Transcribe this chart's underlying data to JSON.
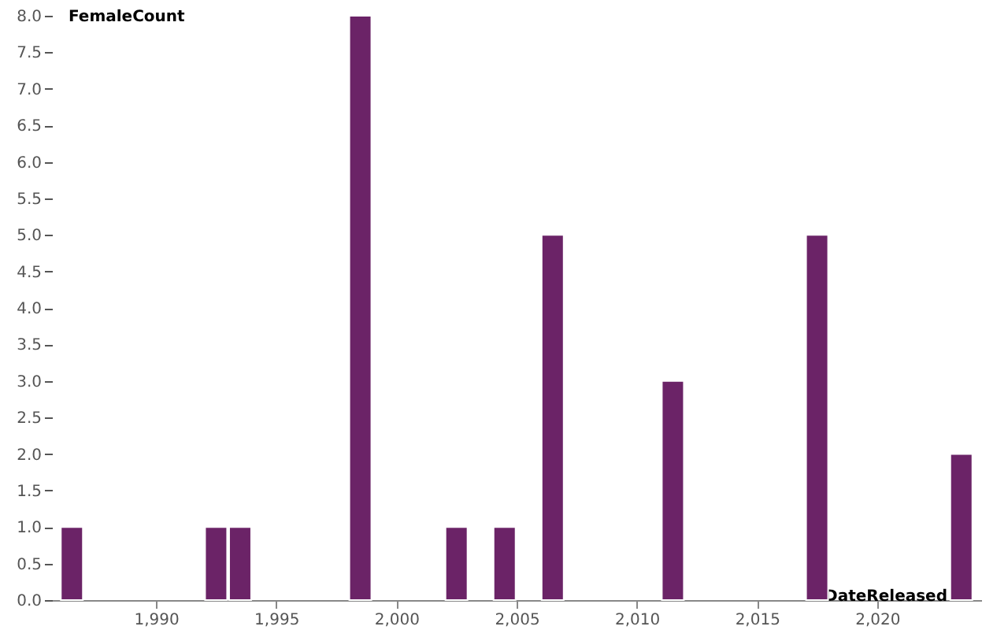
{
  "chart_data": {
    "type": "bar",
    "xlabel": "DateReleased",
    "ylabel": "FemaleCount",
    "x": [
      1986.5,
      1992.5,
      1993.5,
      1998.5,
      2002.5,
      2004.5,
      2006.5,
      2011.5,
      2017.5,
      2023.5
    ],
    "values": [
      1,
      1,
      1,
      8,
      1,
      1,
      5,
      3,
      5,
      2
    ],
    "color": "#6b2367",
    "xlim": [
      1986,
      2024
    ],
    "xticks": [
      {
        "value": 1990,
        "label": "1,990"
      },
      {
        "value": 1995,
        "label": "1,995"
      },
      {
        "value": 2000,
        "label": "2,000"
      },
      {
        "value": 2005,
        "label": "2,005"
      },
      {
        "value": 2010,
        "label": "2,010"
      },
      {
        "value": 2015,
        "label": "2,015"
      },
      {
        "value": 2020,
        "label": "2,020"
      }
    ],
    "ylim": [
      0,
      8
    ],
    "yticks": [
      {
        "value": 0,
        "label": "0.0"
      },
      {
        "value": 0.5,
        "label": "0.5"
      },
      {
        "value": 1,
        "label": "1.0"
      },
      {
        "value": 1.5,
        "label": "1.5"
      },
      {
        "value": 2,
        "label": "2.0"
      },
      {
        "value": 2.5,
        "label": "2.5"
      },
      {
        "value": 3,
        "label": "3.0"
      },
      {
        "value": 3.5,
        "label": "3.5"
      },
      {
        "value": 4,
        "label": "4.0"
      },
      {
        "value": 4.5,
        "label": "4.5"
      },
      {
        "value": 5,
        "label": "5.0"
      },
      {
        "value": 5.5,
        "label": "5.5"
      },
      {
        "value": 6,
        "label": "6.0"
      },
      {
        "value": 6.5,
        "label": "6.5"
      },
      {
        "value": 7,
        "label": "7.0"
      },
      {
        "value": 7.5,
        "label": "7.5"
      },
      {
        "value": 8,
        "label": "8.0"
      }
    ],
    "grid": false
  }
}
